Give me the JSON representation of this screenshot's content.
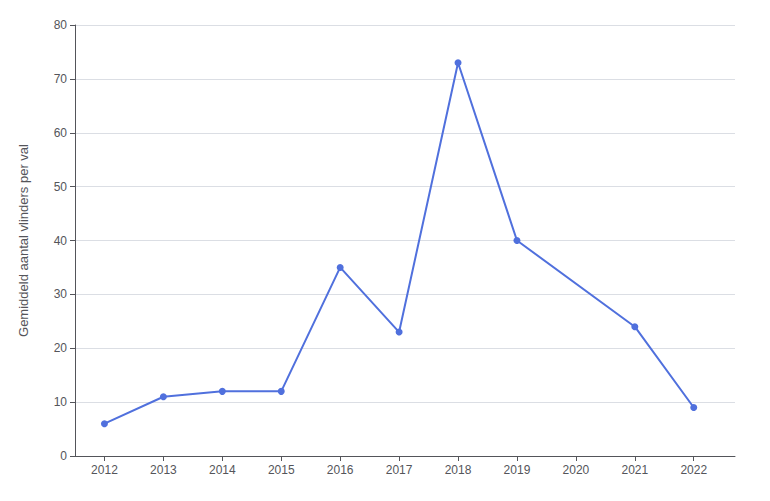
{
  "chart_data": {
    "type": "line",
    "ylabel": "Gemiddeld aantal vlinders per val",
    "x": [
      2012,
      2013,
      2014,
      2015,
      2016,
      2017,
      2018,
      2019,
      2021,
      2022
    ],
    "values": [
      6,
      11,
      12,
      12,
      35,
      23,
      73,
      40,
      24,
      9
    ],
    "marker": "circle",
    "xlim": [
      2011.5,
      2022.7
    ],
    "xticks": [
      2012,
      2013,
      2014,
      2015,
      2016,
      2017,
      2018,
      2019,
      2020,
      2021,
      2022
    ],
    "ylim": [
      0,
      80
    ],
    "yticks": [
      0,
      10,
      20,
      30,
      40,
      50,
      60,
      70,
      80
    ],
    "grid": true
  }
}
